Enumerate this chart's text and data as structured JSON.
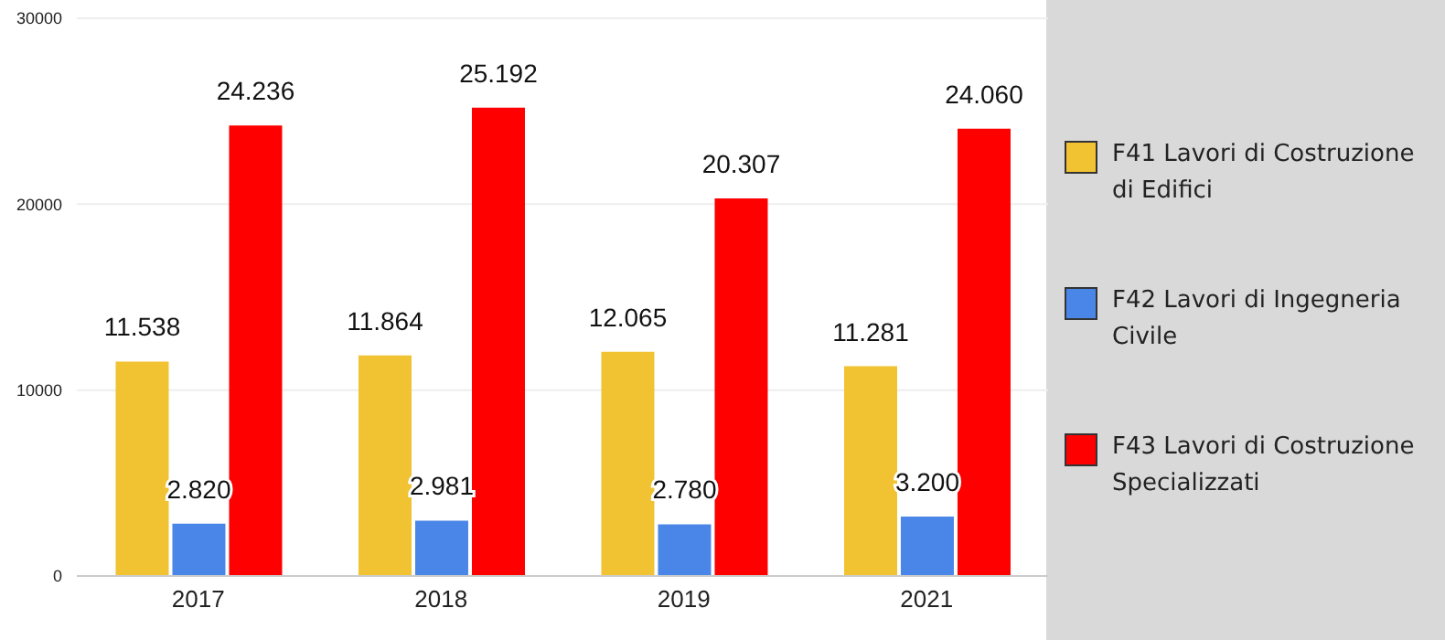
{
  "chart_data": {
    "type": "bar",
    "categories": [
      "2017",
      "2018",
      "2019",
      "2021"
    ],
    "series": [
      {
        "name": "F41 Lavori di Costruzione di Edifici",
        "color": "#f1c232",
        "values": [
          11538,
          11864,
          12065,
          11281
        ],
        "value_labels": [
          "11.538",
          "11.864",
          "12.065",
          "11.281"
        ]
      },
      {
        "name": "F42 Lavori di Ingegneria Civile",
        "color": "#4a86e8",
        "values": [
          2820,
          2981,
          2780,
          3200
        ],
        "value_labels": [
          "2.820",
          "2.981",
          "2.780",
          "3.200"
        ]
      },
      {
        "name": "F43 Lavori di Costruzione Specializzati",
        "color": "#ff0000",
        "values": [
          24236,
          25192,
          20307,
          24060
        ],
        "value_labels": [
          "24.236",
          "25.192",
          "20.307",
          "24.060"
        ]
      }
    ],
    "ylim": [
      0,
      30000
    ],
    "yticks": [
      0,
      10000,
      20000,
      30000
    ],
    "grid": "y",
    "legend": "right"
  }
}
